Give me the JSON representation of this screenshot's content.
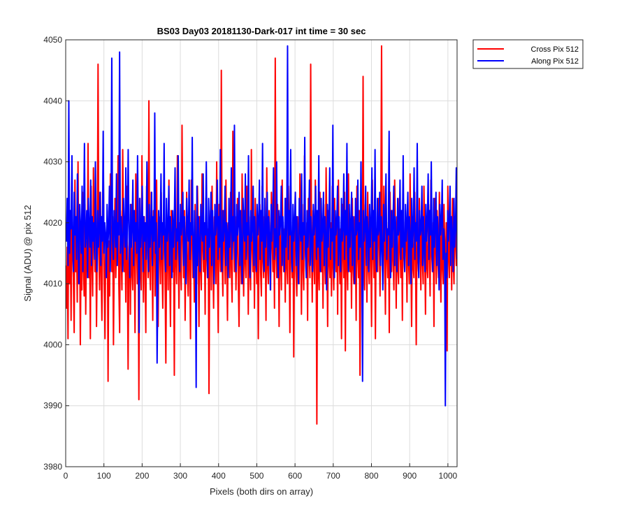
{
  "chart_data": {
    "type": "line",
    "title": "BS03 Day03 20181130-Dark-017 int time = 30 sec",
    "xlabel": "Pixels (both dirs on array)",
    "ylabel": "Signal (ADU) @ pix 512",
    "xlim": [
      0,
      1024
    ],
    "ylim": [
      3980,
      4050
    ],
    "xticks": [
      0,
      100,
      200,
      300,
      400,
      500,
      600,
      700,
      800,
      900,
      1000
    ],
    "yticks": [
      3980,
      3990,
      4000,
      4010,
      4020,
      4030,
      4040,
      4050
    ],
    "grid": true,
    "legend_position": "outside-top-right",
    "series": [
      {
        "name": "Cross Pix 512",
        "color": "#ff0000",
        "values": [
          4013,
          4006,
          4016,
          4001,
          4026,
          4010,
          4019,
          4004,
          4024,
          4015,
          4011,
          4002,
          4027,
          4012,
          4018,
          4007,
          4030,
          4010,
          4021,
          4000,
          4016,
          4009,
          4025,
          4013,
          4008,
          4023,
          4005,
          4017,
          4012,
          4033,
          4011,
          4019,
          4001,
          4026,
          4014,
          4008,
          4029,
          4018,
          4012,
          4022,
          4003,
          4016,
          4046,
          4015,
          4009,
          4025,
          4012,
          4004,
          4019,
          4027,
          4011,
          4001,
          4018,
          4014,
          4022,
          3994,
          4017,
          4008,
          4028,
          4019,
          4012,
          4021,
          4000,
          4015,
          4024,
          4011,
          4017,
          4019,
          4031,
          4010,
          4002,
          4022,
          4016,
          4009,
          4032,
          4018,
          4012,
          4020,
          4007,
          4026,
          4014,
          3996,
          4016,
          4018,
          4005,
          4023,
          4012,
          4009,
          4021,
          4015,
          4002,
          4028,
          4017,
          4010,
          4019,
          3991,
          4024,
          4013,
          4009,
          4031,
          4016,
          4007,
          4021,
          4014,
          4002,
          4026,
          4018,
          4011,
          4040,
          4013,
          4009,
          4025,
          4016,
          4004,
          4022,
          4019,
          4008,
          4015,
          4027,
          4012,
          4003,
          4021,
          4017,
          4010,
          4025,
          4014,
          4006,
          4018,
          4023,
          4011,
          3997,
          4016,
          4020,
          4009,
          4027,
          4013,
          4003,
          4022,
          4018,
          4012,
          4019,
          3995,
          4024,
          4015,
          4010,
          4031,
          4017,
          4006,
          4020,
          4013,
          4009,
          4036,
          4018,
          4011,
          4022,
          4004,
          4016,
          4025,
          4012,
          4008,
          4019,
          4015,
          4001,
          4027,
          4020,
          4011,
          4016,
          4007,
          4023,
          4014,
          4010,
          4026,
          4018,
          4003,
          4021,
          4013,
          4009,
          4028,
          4016,
          4012,
          4020,
          4005,
          4024,
          4015,
          4011,
          4019,
          3992,
          4017,
          4022,
          4009,
          4026,
          4014,
          4006,
          4021,
          4018,
          4010,
          4030,
          4013,
          4002,
          4023,
          4016,
          4012,
          4045,
          4015,
          4008,
          4022,
          4019,
          4010,
          4027,
          4014,
          4004,
          4020,
          4017,
          4011,
          4025,
          4013,
          4007,
          4035,
          4018,
          4012,
          4021,
          4009,
          4016,
          4024,
          4011,
          4003,
          4019,
          4015,
          4010,
          4028,
          4017,
          4008,
          4022,
          4014,
          4011,
          4026,
          4019,
          4005,
          4021,
          4013,
          4009,
          4032,
          4016,
          4012,
          4020,
          4006,
          4024,
          4015,
          4010,
          4019,
          4001,
          4017,
          4023,
          4012,
          4008,
          4026,
          4014,
          4011,
          4021,
          4018,
          4004,
          4029,
          4013,
          4010,
          4022,
          4016,
          4009,
          4025,
          4017,
          4012,
          4020,
          4006,
          4047,
          4015,
          4011,
          4023,
          4018,
          4003,
          4021,
          4014,
          4009,
          4027,
          4016,
          4012,
          4019,
          4007,
          4024,
          4013,
          4010,
          4026,
          4018,
          4002,
          4022,
          4015,
          4011,
          4020,
          3998,
          4017,
          4025,
          4012,
          4008,
          4021,
          4014,
          4010,
          4028,
          4019,
          4005,
          4023,
          4013,
          4009,
          4031,
          4016,
          4012,
          4020,
          4004,
          4024,
          4015,
          4011,
          4046,
          4018,
          4007,
          4022,
          4014,
          4010,
          4027,
          4017,
          3987,
          4021,
          4013,
          4009,
          4025,
          4016,
          4012,
          4019,
          4006,
          4023,
          4015,
          4010,
          4029,
          4018,
          4003,
          4022,
          4014,
          4011,
          4020,
          4008,
          4026,
          4013,
          4009,
          4024,
          4017,
          4012,
          4021,
          4005,
          4027,
          4015,
          4010,
          4019,
          4001,
          4023,
          4016,
          4011,
          4025,
          3999,
          4022,
          4014,
          4009,
          4028,
          4017,
          4012,
          4020,
          4006,
          4024,
          4013,
          4010,
          4021,
          4018,
          4004,
          4026,
          4015,
          4011,
          4022,
          3995,
          4019,
          4016,
          4012,
          4044,
          4014,
          4009,
          4023,
          4018,
          4007,
          4025,
          4013,
          4010,
          4020,
          4017,
          4003,
          4027,
          4016,
          4011,
          4022,
          4001,
          4019,
          4014,
          4012,
          4024,
          4018,
          4008,
          4021,
          4049,
          4013,
          4010,
          4026,
          4016,
          4005,
          4023,
          4015,
          4011,
          4020,
          4002,
          4025,
          4017,
          4012,
          4022,
          4014,
          4009,
          4027,
          4019,
          4006,
          4021,
          4013,
          4010,
          4024,
          4016,
          4011,
          4020,
          4004,
          4026,
          4015,
          4012,
          4022,
          4018,
          4007,
          4023,
          4014,
          4010,
          4028,
          4017,
          4003,
          4021,
          4013,
          4011,
          4025,
          4016,
          4000,
          4019,
          4015,
          4012,
          4024,
          4018,
          4009,
          4022,
          4014,
          4010,
          4026,
          4017,
          4005,
          4021,
          4013,
          4011,
          4023,
          4016,
          4008,
          4027,
          4015,
          4012,
          4020,
          4003,
          4024,
          4018,
          4010,
          4022,
          4014,
          4011,
          4025,
          4017,
          4007,
          4021,
          4013,
          4010,
          4023,
          4016,
          4012,
          4020,
          3999,
          4026,
          4015,
          4011,
          4022,
          4018,
          4009,
          4024,
          4014,
          4010,
          4021,
          4017,
          4013,
          4026
        ]
      },
      {
        "name": "Along Pix 512",
        "color": "#0000ff",
        "values": [
          4020,
          4017,
          4024,
          4013,
          4040,
          4015,
          4022,
          4019,
          4031,
          4016,
          4012,
          4025,
          4018,
          4021,
          4014,
          4028,
          4017,
          4010,
          4023,
          4019,
          4015,
          4026,
          4012,
          4020,
          4033,
          4016,
          4018,
          4022,
          4011,
          4024,
          4019,
          4016,
          4027,
          4013,
          4021,
          4017,
          4020,
          4014,
          4030,
          4018,
          4012,
          4022,
          4016,
          4019,
          4025,
          4013,
          4021,
          4017,
          4035,
          4015,
          4020,
          4018,
          4011,
          4023,
          4016,
          4019,
          4026,
          4012,
          4021,
          4047,
          4017,
          4014,
          4022,
          4019,
          4016,
          4028,
          4013,
          4020,
          4018,
          4048,
          4015,
          4021,
          4017,
          4012,
          4024,
          4019,
          4016,
          4029,
          4014,
          4020,
          4032,
          4018,
          4011,
          4023,
          4016,
          4019,
          4027,
          4013,
          4022,
          4017,
          4020,
          4015,
          4031,
          4018,
          4002,
          4024,
          4016,
          4019,
          4026,
          4012,
          4021,
          4017,
          4020,
          4014,
          4030,
          4018,
          4012,
          4023,
          4016,
          4019,
          4025,
          4013,
          4021,
          4017,
          4038,
          4015,
          4020,
          3997,
          4011,
          4022,
          4016,
          4019,
          4028,
          4014,
          4020,
          4018,
          4033,
          4015,
          4012,
          4024,
          4017,
          4019,
          4026,
          4013,
          4021,
          4018,
          4011,
          4022,
          4016,
          4020,
          4029,
          4014,
          4019,
          4017,
          4031,
          4015,
          4012,
          4023,
          4018,
          4020,
          4025,
          4013,
          4021,
          4016,
          4010,
          4024,
          4019,
          4017,
          4027,
          4014,
          4020,
          4018,
          4034,
          4015,
          4011,
          4022,
          4017,
          3993,
          4026,
          4013,
          4021,
          4016,
          4012,
          4023,
          4019,
          4017,
          4028,
          4014,
          4020,
          4018,
          4030,
          4015,
          4011,
          4024,
          4016,
          4019,
          4025,
          4013,
          4022,
          4017,
          4010,
          4023,
          4018,
          4020,
          4027,
          4014,
          4021,
          4016,
          4032,
          4015,
          4012,
          4022,
          4017,
          4019,
          4026,
          4013,
          4020,
          4018,
          4011,
          4024,
          4016,
          4019,
          4029,
          4014,
          4021,
          4017,
          4036,
          4015,
          4012,
          4023,
          4018,
          4020,
          4025,
          4013,
          4022,
          4016,
          4010,
          4024,
          4019,
          4017,
          4028,
          4014,
          4020,
          4018,
          4031,
          4015,
          4011,
          4022,
          4017,
          4019,
          4026,
          4013,
          4021,
          4016,
          4012,
          4023,
          4018,
          4020,
          4027,
          4014,
          4022,
          4017,
          4033,
          4015,
          4012,
          4024,
          4016,
          4019,
          4025,
          4013,
          4021,
          4018,
          4009,
          4023,
          4017,
          4020,
          4029,
          4014,
          4019,
          4016,
          4030,
          4015,
          4011,
          4022,
          4018,
          4020,
          4026,
          4013,
          4021,
          4017,
          4012,
          4024,
          4016,
          4019,
          4049,
          4014,
          4022,
          4018,
          4032,
          4015,
          4012,
          4023,
          4017,
          4020,
          4025,
          4013,
          4021,
          4016,
          4010,
          4024,
          4019,
          4017,
          4028,
          4014,
          4020,
          4018,
          4034,
          4015,
          4011,
          4022,
          4016,
          4019,
          4027,
          4013,
          4021,
          4017,
          4012,
          4023,
          4018,
          4020,
          4026,
          4014,
          4022,
          4016,
          4031,
          4015,
          4012,
          4024,
          4017,
          4019,
          4025,
          4013,
          4021,
          4018,
          4009,
          4023,
          4016,
          4020,
          4029,
          4014,
          4019,
          4017,
          4036,
          4015,
          4011,
          4022,
          4018,
          4020,
          4026,
          4013,
          4021,
          4016,
          4012,
          4024,
          4017,
          4019,
          4028,
          4014,
          4022,
          4018,
          4033,
          4015,
          4012,
          4023,
          4016,
          4020,
          4025,
          4013,
          4021,
          4017,
          4010,
          4024,
          4018,
          4019,
          4027,
          4014,
          4020,
          4016,
          4030,
          4015,
          3994,
          4022,
          4017,
          4019,
          4026,
          4013,
          4021,
          4018,
          4012,
          4023,
          4016,
          4020,
          4029,
          4014,
          4022,
          4017,
          4032,
          4015,
          4012,
          4024,
          4018,
          4019,
          4025,
          4013,
          4021,
          4016,
          4009,
          4023,
          4017,
          4020,
          4028,
          4014,
          4019,
          4018,
          4035,
          4015,
          4011,
          4022,
          4016,
          4020,
          4026,
          4013,
          4021,
          4017,
          4012,
          4024,
          4018,
          4019,
          4027,
          4014,
          4022,
          4016,
          4031,
          4015,
          4012,
          4023,
          4017,
          4020,
          4025,
          4013,
          4021,
          4018,
          4010,
          4024,
          4016,
          4019,
          4029,
          4014,
          4020,
          4017,
          4033,
          4015,
          4011,
          4022,
          4018,
          4019,
          4026,
          4013,
          4021,
          4016,
          4012,
          4023,
          4017,
          4020,
          4028,
          4014,
          4022,
          4018,
          4030,
          4015,
          4012,
          4024,
          4016,
          4019,
          4025,
          4013,
          4021,
          4017,
          4009,
          4023,
          4018,
          4020,
          4027,
          4014,
          4019,
          4016,
          3990,
          4015,
          4011,
          4022,
          4017,
          4020,
          4026,
          4013,
          4021,
          4018,
          4012,
          4024,
          4016,
          4019,
          4029,
          4014
        ]
      }
    ]
  }
}
